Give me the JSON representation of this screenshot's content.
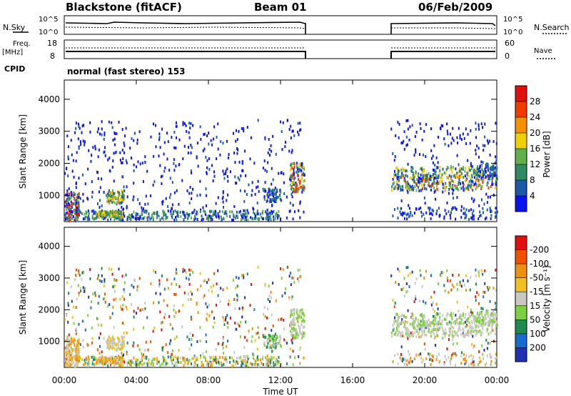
{
  "header": {
    "station": "Blackstone (fitACF)",
    "beam": "Beam 01",
    "date": "06/Feb/2009"
  },
  "status_panels": {
    "noise_left_label": "N.Sky",
    "noise_left_ticks": [
      "10^5",
      "10^0"
    ],
    "noise_right_label": "N.Search",
    "noise_right_ticks": [
      "10^5",
      "10^0"
    ],
    "freq_label_1": "Freq.",
    "freq_label_2": "[MHz]",
    "freq_ticks": [
      "18",
      "8"
    ],
    "nave_label": "Nave",
    "nave_ticks": [
      "60",
      "0"
    ],
    "cpid_label": "CPID",
    "cpid_value": "normal (fast stereo) 153"
  },
  "chart_data": [
    {
      "type": "heatmap",
      "name": "power",
      "ylabel": "Slant Range [km]",
      "xlabel": "Time UT",
      "x_ticks": [
        "00:00",
        "04:00",
        "08:00",
        "12:00",
        "16:00",
        "20:00",
        "00:00"
      ],
      "x_tick_hours": [
        0,
        4,
        8,
        12,
        16,
        20,
        24
      ],
      "xlim_hours": [
        0,
        24
      ],
      "y_ticks": [
        1000,
        2000,
        3000,
        4000
      ],
      "ylim": [
        180,
        4600
      ],
      "colorbar_label": "Power [dB]",
      "colorbar_ticks": [
        "4",
        "8",
        "12",
        "16",
        "20",
        "24",
        "28"
      ],
      "colorbar_colors": [
        "#0a14f0",
        "#1c5aa8",
        "#2f8a63",
        "#62b04a",
        "#f0d000",
        "#f59100",
        "#f03a00",
        "#e01010"
      ],
      "data_gaps_hours": [
        [
          13.3,
          18.1
        ]
      ]
    },
    {
      "type": "heatmap",
      "name": "velocity",
      "ylabel": "Slant Range [km]",
      "xlabel": "Time UT",
      "x_ticks": [
        "00:00",
        "04:00",
        "08:00",
        "12:00",
        "16:00",
        "20:00",
        "00:00"
      ],
      "xlim_hours": [
        0,
        24
      ],
      "y_ticks": [
        1000,
        2000,
        3000,
        4000
      ],
      "ylim": [
        180,
        4600
      ],
      "colorbar_label": "Velocity [m s⁻¹]",
      "colorbar_ticks": [
        "200",
        "100",
        "50",
        "15",
        "-15",
        "-50",
        "-100",
        "-200"
      ],
      "colorbar_colors": [
        "#2030b0",
        "#1a6ad0",
        "#1f8a50",
        "#7fd040",
        "#c8c8c0",
        "#f0c020",
        "#f09010",
        "#f05000",
        "#e01010"
      ],
      "data_gaps_hours": [
        [
          13.3,
          18.1
        ]
      ]
    }
  ]
}
